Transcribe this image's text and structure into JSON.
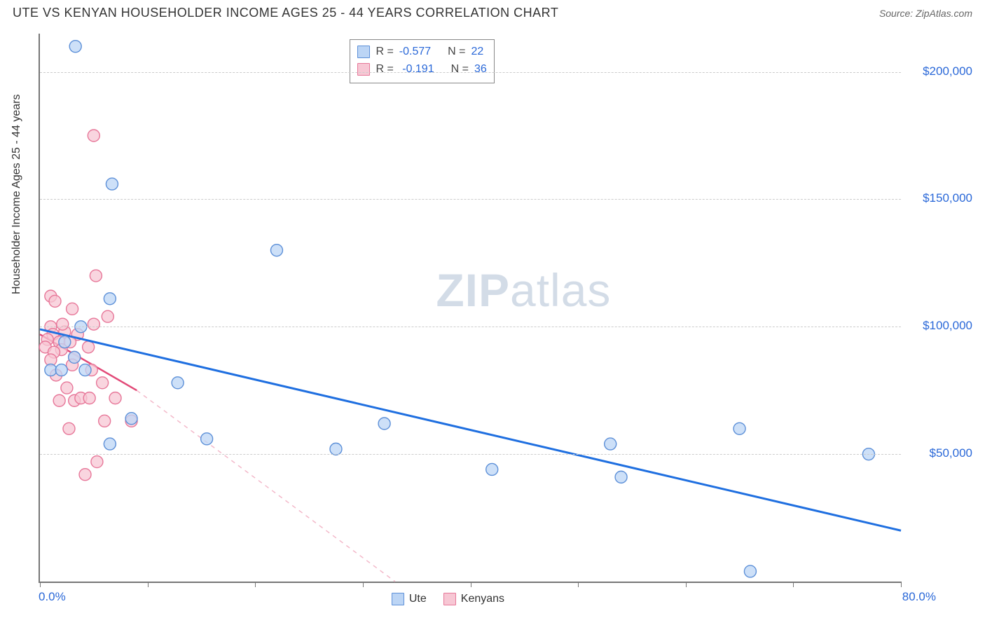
{
  "title": "UTE VS KENYAN HOUSEHOLDER INCOME AGES 25 - 44 YEARS CORRELATION CHART",
  "source": "Source: ZipAtlas.com",
  "watermark_zip": "ZIP",
  "watermark_atlas": "atlas",
  "y_axis_label": "Householder Income Ages 25 - 44 years",
  "chart": {
    "type": "scatter",
    "background_color": "#ffffff",
    "grid_color": "#cccccc",
    "axis_color": "#777777",
    "xlim": [
      0,
      80
    ],
    "ylim": [
      0,
      215000
    ],
    "x_tick_positions": [
      0,
      10,
      20,
      30,
      40,
      50,
      60,
      70,
      80
    ],
    "x_tick_labels": {
      "0": "0.0%",
      "80": "80.0%"
    },
    "y_grid_values": [
      50000,
      100000,
      150000,
      200000
    ],
    "y_tick_labels": {
      "50000": "$50,000",
      "100000": "$100,000",
      "150000": "$150,000",
      "200000": "$200,000"
    },
    "label_color": "#2a68d8",
    "label_fontsize": 17
  },
  "series": {
    "ute": {
      "label": "Ute",
      "marker_fill": "#bcd5f5",
      "marker_stroke": "#5d90d8",
      "marker_radius": 8.5,
      "line_color": "#1f6fe0",
      "line_width": 3,
      "dash_color": "#b9d0f2",
      "trend_solid": {
        "x1": 0,
        "y1": 99000,
        "x2": 80,
        "y2": 20000
      },
      "stats": {
        "R": "-0.577",
        "N": "22"
      },
      "points": [
        [
          3.3,
          210000
        ],
        [
          6.7,
          156000
        ],
        [
          6.5,
          111000
        ],
        [
          3.8,
          100000
        ],
        [
          2.3,
          94000
        ],
        [
          3.2,
          88000
        ],
        [
          1.0,
          83000
        ],
        [
          2.0,
          83000
        ],
        [
          4.2,
          83000
        ],
        [
          12.8,
          78000
        ],
        [
          8.5,
          64000
        ],
        [
          15.5,
          56000
        ],
        [
          27.5,
          52000
        ],
        [
          42.0,
          44000
        ],
        [
          54.0,
          41000
        ],
        [
          6.5,
          54000
        ],
        [
          32.0,
          62000
        ],
        [
          53.0,
          54000
        ],
        [
          77.0,
          50000
        ],
        [
          65.0,
          60000
        ],
        [
          66.0,
          4000
        ],
        [
          22.0,
          130000
        ]
      ]
    },
    "kenyans": {
      "label": "Kenyans",
      "marker_fill": "#f7c7d4",
      "marker_stroke": "#e77799",
      "marker_radius": 8.5,
      "line_color": "#e24a78",
      "line_width": 2.5,
      "dash_color": "#f3b9ca",
      "trend_solid": {
        "x1": 0,
        "y1": 97000,
        "x2": 9,
        "y2": 75000
      },
      "trend_dash": {
        "x1": 9,
        "y1": 75000,
        "x2": 33,
        "y2": 0
      },
      "stats": {
        "R": "-0.191",
        "N": "36"
      },
      "points": [
        [
          5.0,
          175000
        ],
        [
          5.2,
          120000
        ],
        [
          1.0,
          112000
        ],
        [
          1.4,
          110000
        ],
        [
          3.0,
          107000
        ],
        [
          1.0,
          100000
        ],
        [
          5.0,
          101000
        ],
        [
          6.3,
          104000
        ],
        [
          1.2,
          97000
        ],
        [
          2.3,
          98000
        ],
        [
          3.5,
          97000
        ],
        [
          0.7,
          95000
        ],
        [
          1.8,
          94000
        ],
        [
          2.8,
          94000
        ],
        [
          0.5,
          92000
        ],
        [
          2.0,
          91000
        ],
        [
          4.5,
          92000
        ],
        [
          1.3,
          90000
        ],
        [
          1.0,
          87000
        ],
        [
          3.2,
          88000
        ],
        [
          3.0,
          85000
        ],
        [
          4.8,
          83000
        ],
        [
          5.8,
          78000
        ],
        [
          3.2,
          71000
        ],
        [
          3.8,
          72000
        ],
        [
          4.6,
          72000
        ],
        [
          7.0,
          72000
        ],
        [
          8.5,
          63000
        ],
        [
          6.0,
          63000
        ],
        [
          2.7,
          60000
        ],
        [
          5.3,
          47000
        ],
        [
          4.2,
          42000
        ],
        [
          1.5,
          81000
        ],
        [
          2.5,
          76000
        ],
        [
          1.8,
          71000
        ],
        [
          2.1,
          101000
        ]
      ]
    }
  },
  "stats_legend": {
    "r_label": "R =",
    "n_label": "N ="
  }
}
